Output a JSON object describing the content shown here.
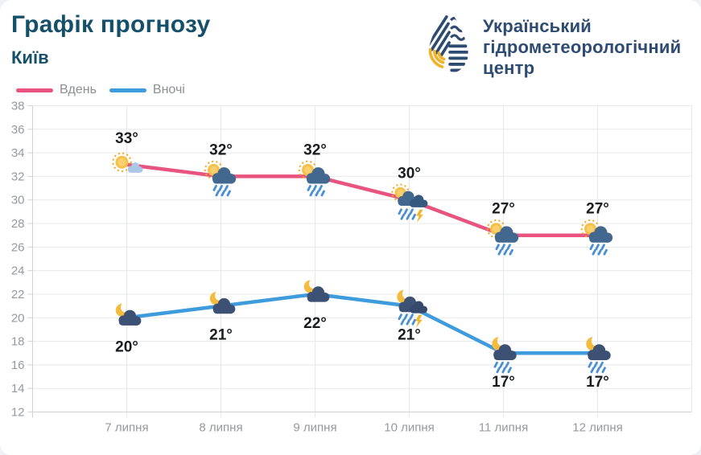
{
  "header": {
    "title": "Графік прогнозу",
    "subtitle": "Київ",
    "org_name_lines": [
      "Український",
      "гідрометеорологічний",
      "центр"
    ]
  },
  "legend": [
    {
      "label": "Вдень",
      "color": "#e8547f"
    },
    {
      "label": "Вночі",
      "color": "#3e9bdc"
    }
  ],
  "colors": {
    "title": "#15506b",
    "org_text": "#2e4c72",
    "day_line": "#e8547f",
    "night_line": "#3e9bdc",
    "axis_text": "#97999c",
    "grid": "#e7e8ea"
  },
  "chart_data": {
    "type": "line",
    "title": "Графік прогнозу — Київ",
    "categories": [
      "7 липня",
      "8 липня",
      "9 липня",
      "10 липня",
      "11 липня",
      "12 липня"
    ],
    "series": [
      {
        "name": "Вдень",
        "color": "#e8547f",
        "values": [
          33,
          32,
          32,
          30,
          27,
          27
        ],
        "point_labels": [
          "33°",
          "32°",
          "32°",
          "30°",
          "27°",
          "27°"
        ],
        "icons": [
          "sun-behind-small-cloud",
          "sun-behind-rain-cloud",
          "sun-behind-rain-cloud",
          "sun-thunderstorm-cloud",
          "sun-behind-rain-cloud",
          "sun-behind-rain-cloud"
        ],
        "label_position": "above"
      },
      {
        "name": "Вночі",
        "color": "#3e9bdc",
        "values": [
          20,
          21,
          22,
          21,
          17,
          17
        ],
        "point_labels": [
          "20°",
          "21°",
          "22°",
          "21°",
          "17°",
          "17°"
        ],
        "icons": [
          "moon-behind-cloud",
          "moon-behind-cloud",
          "moon-behind-cloud",
          "moon-thunderstorm-cloud",
          "moon-rain-cloud",
          "moon-rain-cloud"
        ],
        "label_position": "below"
      }
    ],
    "xlabel": "",
    "ylabel": "",
    "ylim": [
      12,
      38
    ],
    "yticks": [
      38,
      36,
      34,
      32,
      30,
      28,
      26,
      24,
      22,
      20,
      18,
      16,
      14,
      12
    ],
    "grid": true,
    "legend_position": "top-left"
  }
}
